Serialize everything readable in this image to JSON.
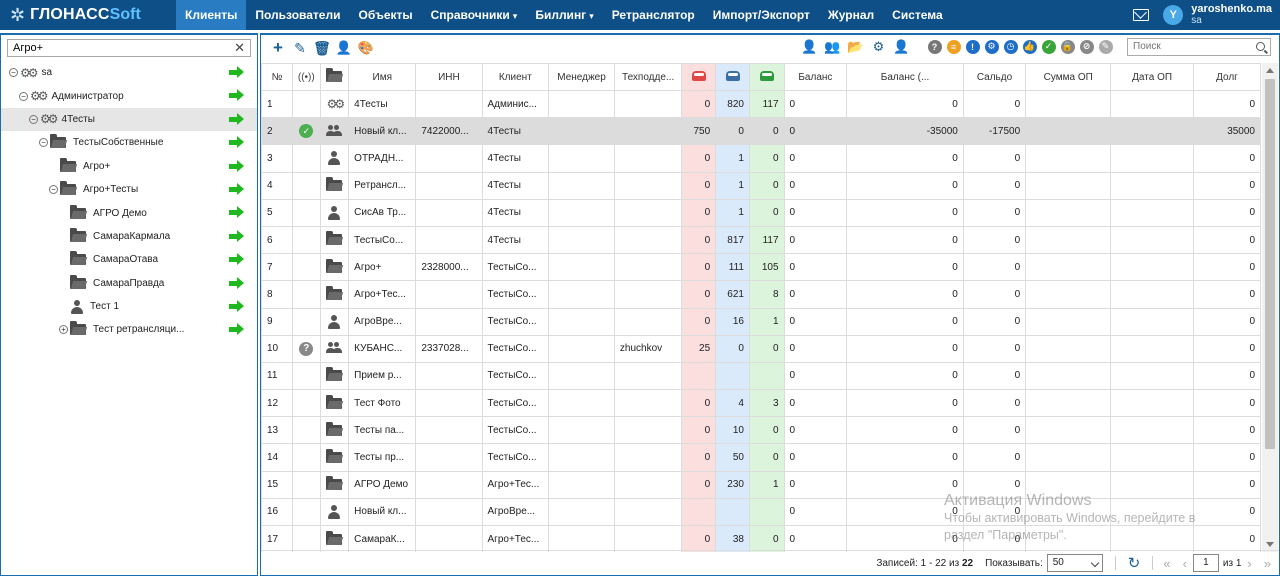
{
  "brand": {
    "name": "ГЛОНАСС",
    "suffix": "Soft"
  },
  "nav": [
    {
      "label": "Клиенты",
      "active": true,
      "dropdown": false
    },
    {
      "label": "Пользователи",
      "active": false,
      "dropdown": false
    },
    {
      "label": "Объекты",
      "active": false,
      "dropdown": false
    },
    {
      "label": "Справочники",
      "active": false,
      "dropdown": true
    },
    {
      "label": "Биллинг",
      "active": false,
      "dropdown": true
    },
    {
      "label": "Ретранслятор",
      "active": false,
      "dropdown": false
    },
    {
      "label": "Импорт/Экспорт",
      "active": false,
      "dropdown": false
    },
    {
      "label": "Журнал",
      "active": false,
      "dropdown": false
    },
    {
      "label": "Система",
      "active": false,
      "dropdown": false
    }
  ],
  "user": {
    "avatar_letter": "Y",
    "name": "yaroshenko.ma",
    "login": "sa"
  },
  "tree": {
    "search_value": "Агро+",
    "items": [
      {
        "label": "sa",
        "level": 0,
        "icon": "gears",
        "toggle": "⊖",
        "selected": false
      },
      {
        "label": "Администратор",
        "level": 1,
        "icon": "gears",
        "toggle": "⊖",
        "selected": false
      },
      {
        "label": "4Тесты",
        "level": 2,
        "icon": "gears",
        "toggle": "⊖",
        "selected": true
      },
      {
        "label": "ТестыСобственные",
        "level": 3,
        "icon": "folder",
        "toggle": "⊖",
        "selected": false
      },
      {
        "label": "Агро+",
        "level": 4,
        "icon": "folder",
        "toggle": "",
        "selected": false
      },
      {
        "label": "Агро+Тесты",
        "level": 4,
        "icon": "folder",
        "toggle": "⊖",
        "selected": false
      },
      {
        "label": "АГРО Демо",
        "level": 5,
        "icon": "folder",
        "toggle": "",
        "selected": false
      },
      {
        "label": "СамараКармала",
        "level": 5,
        "icon": "folder",
        "toggle": "",
        "selected": false
      },
      {
        "label": "СамараОтава",
        "level": 5,
        "icon": "folder",
        "toggle": "",
        "selected": false
      },
      {
        "label": "СамараПравда",
        "level": 5,
        "icon": "folder",
        "toggle": "",
        "selected": false
      },
      {
        "label": "Тест 1",
        "level": 5,
        "icon": "person",
        "toggle": "",
        "selected": false
      },
      {
        "label": "Тест ретрансляци...",
        "level": 5,
        "icon": "folder",
        "toggle": "⊕",
        "selected": false
      }
    ]
  },
  "toolbar": {
    "search_placeholder": "Поиск"
  },
  "columns": {
    "num": "№",
    "name": "Имя",
    "inn": "ИНН",
    "client": "Клиент",
    "manager": "Менеджер",
    "tech": "Техподде...",
    "balance": "Баланс",
    "balance2": "Баланс (...",
    "saldo": "Сальдо",
    "sum_op": "Сумма ОП",
    "date_op": "Дата ОП",
    "debt": "Долг"
  },
  "rows": [
    {
      "n": "1",
      "status": "",
      "type": "gears",
      "name": "4Тесты",
      "inn": "",
      "client": "Админис...",
      "manager": "",
      "tech": "",
      "red": "0",
      "blue": "820",
      "green": "117",
      "balance": "0",
      "balance2": "0",
      "saldo": "0",
      "sum_op": "",
      "date_op": "",
      "debt": "0",
      "selected": false
    },
    {
      "n": "2",
      "status": "ok",
      "type": "users",
      "name": "Новый кл...",
      "inn": "7422000...",
      "client": "4Тесты",
      "manager": "",
      "tech": "",
      "red": "750",
      "blue": "0",
      "green": "0",
      "balance": "0",
      "balance2": "-35000",
      "saldo": "-17500",
      "sum_op": "",
      "date_op": "",
      "debt": "35000",
      "selected": true
    },
    {
      "n": "3",
      "status": "",
      "type": "person",
      "name": "ОТРАДН...",
      "inn": "",
      "client": "4Тесты",
      "manager": "",
      "tech": "",
      "red": "0",
      "blue": "1",
      "green": "0",
      "balance": "0",
      "balance2": "0",
      "saldo": "0",
      "sum_op": "",
      "date_op": "",
      "debt": "0",
      "selected": false
    },
    {
      "n": "4",
      "status": "",
      "type": "folder",
      "name": "Ретрансл...",
      "inn": "",
      "client": "4Тесты",
      "manager": "",
      "tech": "",
      "red": "0",
      "blue": "1",
      "green": "0",
      "balance": "0",
      "balance2": "0",
      "saldo": "0",
      "sum_op": "",
      "date_op": "",
      "debt": "0",
      "selected": false
    },
    {
      "n": "5",
      "status": "",
      "type": "person",
      "name": "СисАв Тр...",
      "inn": "",
      "client": "4Тесты",
      "manager": "",
      "tech": "",
      "red": "0",
      "blue": "1",
      "green": "0",
      "balance": "0",
      "balance2": "0",
      "saldo": "0",
      "sum_op": "",
      "date_op": "",
      "debt": "0",
      "selected": false
    },
    {
      "n": "6",
      "status": "",
      "type": "folder",
      "name": "ТестыСо...",
      "inn": "",
      "client": "4Тесты",
      "manager": "",
      "tech": "",
      "red": "0",
      "blue": "817",
      "green": "117",
      "balance": "0",
      "balance2": "0",
      "saldo": "0",
      "sum_op": "",
      "date_op": "",
      "debt": "0",
      "selected": false
    },
    {
      "n": "7",
      "status": "",
      "type": "folder",
      "name": "Агро+",
      "inn": "2328000...",
      "client": "ТестыСо...",
      "manager": "",
      "tech": "",
      "red": "0",
      "blue": "111",
      "green": "105",
      "balance": "0",
      "balance2": "0",
      "saldo": "0",
      "sum_op": "",
      "date_op": "",
      "debt": "0",
      "selected": false
    },
    {
      "n": "8",
      "status": "",
      "type": "folder",
      "name": "Агро+Тес...",
      "inn": "",
      "client": "ТестыСо...",
      "manager": "",
      "tech": "",
      "red": "0",
      "blue": "621",
      "green": "8",
      "balance": "0",
      "balance2": "0",
      "saldo": "0",
      "sum_op": "",
      "date_op": "",
      "debt": "0",
      "selected": false
    },
    {
      "n": "9",
      "status": "",
      "type": "person",
      "name": "АгроВре...",
      "inn": "",
      "client": "ТестыСо...",
      "manager": "",
      "tech": "",
      "red": "0",
      "blue": "16",
      "green": "1",
      "balance": "0",
      "balance2": "0",
      "saldo": "0",
      "sum_op": "",
      "date_op": "",
      "debt": "0",
      "selected": false
    },
    {
      "n": "10",
      "status": "question",
      "type": "users",
      "name": "КУБАНС...",
      "inn": "2337028...",
      "client": "ТестыСо...",
      "manager": "",
      "tech": "zhuchkov",
      "red": "25",
      "blue": "0",
      "green": "0",
      "balance": "0",
      "balance2": "0",
      "saldo": "0",
      "sum_op": "",
      "date_op": "",
      "debt": "0",
      "selected": false
    },
    {
      "n": "11",
      "status": "",
      "type": "folder",
      "name": "Прием р...",
      "inn": "",
      "client": "ТестыСо...",
      "manager": "",
      "tech": "",
      "red": "",
      "blue": "",
      "green": "",
      "balance": "0",
      "balance2": "0",
      "saldo": "0",
      "sum_op": "",
      "date_op": "",
      "debt": "0",
      "selected": false
    },
    {
      "n": "12",
      "status": "",
      "type": "folder",
      "name": "Тест Фото",
      "inn": "",
      "client": "ТестыСо...",
      "manager": "",
      "tech": "",
      "red": "0",
      "blue": "4",
      "green": "3",
      "balance": "0",
      "balance2": "0",
      "saldo": "0",
      "sum_op": "",
      "date_op": "",
      "debt": "0",
      "selected": false
    },
    {
      "n": "13",
      "status": "",
      "type": "folder",
      "name": "Тесты па...",
      "inn": "",
      "client": "ТестыСо...",
      "manager": "",
      "tech": "",
      "red": "0",
      "blue": "10",
      "green": "0",
      "balance": "0",
      "balance2": "0",
      "saldo": "0",
      "sum_op": "",
      "date_op": "",
      "debt": "0",
      "selected": false
    },
    {
      "n": "14",
      "status": "",
      "type": "folder",
      "name": "Тесты пр...",
      "inn": "",
      "client": "ТестыСо...",
      "manager": "",
      "tech": "",
      "red": "0",
      "blue": "50",
      "green": "0",
      "balance": "0",
      "balance2": "0",
      "saldo": "0",
      "sum_op": "",
      "date_op": "",
      "debt": "0",
      "selected": false
    },
    {
      "n": "15",
      "status": "",
      "type": "folder",
      "name": "АГРО Демо",
      "inn": "",
      "client": "Агро+Тес...",
      "manager": "",
      "tech": "",
      "red": "0",
      "blue": "230",
      "green": "1",
      "balance": "0",
      "balance2": "0",
      "saldo": "0",
      "sum_op": "",
      "date_op": "",
      "debt": "0",
      "selected": false
    },
    {
      "n": "16",
      "status": "",
      "type": "person",
      "name": "Новый кл...",
      "inn": "",
      "client": "АгроВре...",
      "manager": "",
      "tech": "",
      "red": "",
      "blue": "",
      "green": "",
      "balance": "0",
      "balance2": "0",
      "saldo": "0",
      "sum_op": "",
      "date_op": "",
      "debt": "0",
      "selected": false
    },
    {
      "n": "17",
      "status": "",
      "type": "folder",
      "name": "СамараК...",
      "inn": "",
      "client": "Агро+Тес...",
      "manager": "",
      "tech": "",
      "red": "0",
      "blue": "38",
      "green": "0",
      "balance": "0",
      "balance2": "0",
      "saldo": "0",
      "sum_op": "",
      "date_op": "",
      "debt": "0",
      "selected": false
    }
  ],
  "footer": {
    "records_label": "Записей: 1 - 22 из",
    "records_total": "22",
    "show_label": "Показывать:",
    "page_size": "50",
    "page": "1",
    "of_label": "из 1"
  },
  "watermark": {
    "title": "Активация Windows",
    "line1": "Чтобы активировать Windows, перейдите в",
    "line2": "раздел \"Параметры\"."
  },
  "colors": {
    "header_bg": "#0d4f86",
    "active_nav": "#2a7cc2",
    "car_red": "#e04848",
    "car_blue": "#3a6fa6",
    "car_green": "#2e9a3e"
  }
}
